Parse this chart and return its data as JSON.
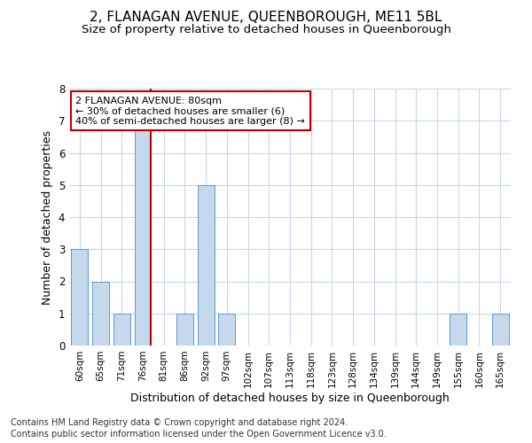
{
  "title": "2, FLANAGAN AVENUE, QUEENBOROUGH, ME11 5BL",
  "subtitle": "Size of property relative to detached houses in Queenborough",
  "xlabel": "Distribution of detached houses by size in Queenborough",
  "ylabel": "Number of detached properties",
  "categories": [
    "60sqm",
    "65sqm",
    "71sqm",
    "76sqm",
    "81sqm",
    "86sqm",
    "92sqm",
    "97sqm",
    "102sqm",
    "107sqm",
    "113sqm",
    "118sqm",
    "123sqm",
    "128sqm",
    "134sqm",
    "139sqm",
    "144sqm",
    "149sqm",
    "155sqm",
    "160sqm",
    "165sqm"
  ],
  "values": [
    3,
    2,
    1,
    7,
    0,
    1,
    5,
    1,
    0,
    0,
    0,
    0,
    0,
    0,
    0,
    0,
    0,
    0,
    1,
    0,
    1
  ],
  "bar_color": "#c6d9ec",
  "bar_edge_color": "#5b9bd5",
  "highlight_bar_index": 3,
  "highlight_line_color": "#c00000",
  "ylim": [
    0,
    8
  ],
  "yticks": [
    0,
    1,
    2,
    3,
    4,
    5,
    6,
    7,
    8
  ],
  "annotation_title": "2 FLANAGAN AVENUE: 80sqm",
  "annotation_line1": "← 30% of detached houses are smaller (6)",
  "annotation_line2": "40% of semi-detached houses are larger (8) →",
  "annotation_box_color": "#ffffff",
  "annotation_box_edge": "#c00000",
  "footer1": "Contains HM Land Registry data © Crown copyright and database right 2024.",
  "footer2": "Contains public sector information licensed under the Open Government Licence v3.0.",
  "background_color": "#ffffff",
  "grid_color": "#c8d8e8",
  "title_fontsize": 11,
  "subtitle_fontsize": 9.5,
  "axis_label_fontsize": 9,
  "tick_fontsize": 7.5,
  "annotation_fontsize": 8,
  "footer_fontsize": 7
}
